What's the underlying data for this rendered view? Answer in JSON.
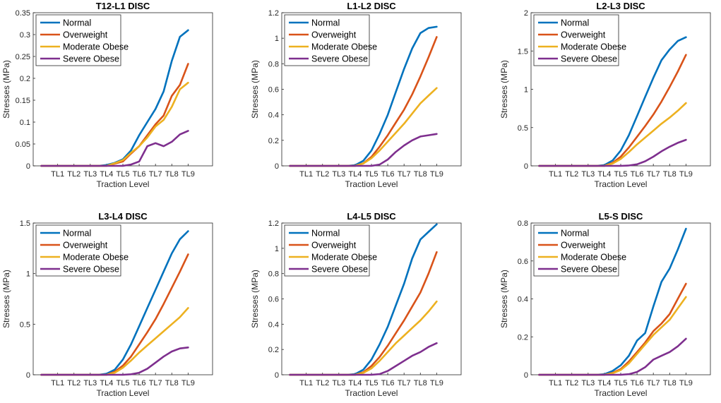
{
  "figure": {
    "legend": {
      "entries": [
        "Normal",
        "Overweight",
        "Moderate Obese",
        "Severe Obese"
      ],
      "placement": "top-left"
    },
    "series_colors": {
      "Normal": "#0072BD",
      "Overweight": "#D95319",
      "Moderate Obese": "#EDB120",
      "Severe Obese": "#7E2F8E"
    }
  },
  "chart_data": [
    {
      "type": "line",
      "title": "T12-L1 DISC",
      "xlabel": "Traction Level",
      "ylabel": "Stresses (MPa)",
      "categories": [
        "TL1",
        "TL2",
        "TL3",
        "TL4",
        "TL5",
        "TL6",
        "TL7",
        "TL8",
        "TL9"
      ],
      "x": [
        0,
        0.5,
        1,
        1.5,
        2,
        2.5,
        3,
        3.5,
        4,
        4.5,
        5,
        5.5,
        6,
        6.5,
        7,
        7.5,
        8,
        8.5,
        9
      ],
      "ylim": [
        0,
        0.35
      ],
      "yticks": [
        0,
        0.05,
        0.1,
        0.15,
        0.2,
        0.25,
        0.3,
        0.35
      ],
      "ytick_labels": [
        "0",
        "0.05",
        "0.1",
        "0.15",
        "0.2",
        "0.25",
        "0.3",
        "0.35"
      ],
      "series": [
        {
          "name": "Normal",
          "values": [
            0,
            0,
            0,
            0,
            0,
            0,
            0,
            0,
            0.002,
            0.007,
            0.015,
            0.035,
            0.07,
            0.1,
            0.13,
            0.17,
            0.24,
            0.295,
            0.31
          ]
        },
        {
          "name": "Overweight",
          "values": [
            0,
            0,
            0,
            0,
            0,
            0,
            0,
            0,
            0,
            0.005,
            0.01,
            0.028,
            0.045,
            0.07,
            0.095,
            0.115,
            0.16,
            0.185,
            0.233
          ]
        },
        {
          "name": "Moderate Obese",
          "values": [
            0,
            0,
            0,
            0,
            0,
            0,
            0,
            0,
            0,
            0.006,
            0.013,
            0.03,
            0.045,
            0.065,
            0.09,
            0.105,
            0.135,
            0.175,
            0.19
          ]
        },
        {
          "name": "Severe Obese",
          "values": [
            0,
            0,
            0,
            0,
            0,
            0,
            0,
            0,
            0,
            0,
            0,
            0.003,
            0.01,
            0.045,
            0.052,
            0.045,
            0.055,
            0.072,
            0.08
          ]
        }
      ]
    },
    {
      "type": "line",
      "title": "L1-L2 DISC",
      "xlabel": "Traction Level",
      "ylabel": "Stresses (MPa)",
      "categories": [
        "TL1",
        "TL2",
        "TL3",
        "TL4",
        "TL5",
        "TL6",
        "TL7",
        "TL8",
        "TL9"
      ],
      "x": [
        0,
        0.5,
        1,
        1.5,
        2,
        2.5,
        3,
        3.5,
        4,
        4.5,
        5,
        5.5,
        6,
        6.5,
        7,
        7.5,
        8,
        8.5,
        9
      ],
      "ylim": [
        0,
        1.2
      ],
      "yticks": [
        0,
        0.2,
        0.4,
        0.6,
        0.8,
        1,
        1.2
      ],
      "ytick_labels": [
        "0",
        "0.2",
        "0.4",
        "0.6",
        "0.8",
        "1",
        "1.2"
      ],
      "series": [
        {
          "name": "Normal",
          "values": [
            0,
            0,
            0,
            0,
            0,
            0,
            0,
            0,
            0.005,
            0.04,
            0.12,
            0.25,
            0.4,
            0.58,
            0.76,
            0.92,
            1.04,
            1.08,
            1.09
          ]
        },
        {
          "name": "Overweight",
          "values": [
            0,
            0,
            0,
            0,
            0,
            0,
            0,
            0,
            0,
            0.02,
            0.07,
            0.15,
            0.24,
            0.34,
            0.44,
            0.56,
            0.7,
            0.85,
            1.01
          ]
        },
        {
          "name": "Moderate Obese",
          "values": [
            0,
            0,
            0,
            0,
            0,
            0,
            0,
            0,
            0,
            0.018,
            0.06,
            0.12,
            0.19,
            0.26,
            0.33,
            0.41,
            0.49,
            0.55,
            0.61
          ]
        },
        {
          "name": "Severe Obese",
          "values": [
            0,
            0,
            0,
            0,
            0,
            0,
            0,
            0,
            0,
            0,
            0,
            0.01,
            0.05,
            0.11,
            0.16,
            0.2,
            0.23,
            0.24,
            0.25
          ]
        }
      ]
    },
    {
      "type": "line",
      "title": "L2-L3 DISC",
      "xlabel": "Traction Level",
      "ylabel": "Stresses (MPa)",
      "categories": [
        "TL1",
        "TL2",
        "TL3",
        "TL4",
        "TL5",
        "TL6",
        "TL7",
        "TL8",
        "TL9"
      ],
      "x": [
        0,
        0.5,
        1,
        1.5,
        2,
        2.5,
        3,
        3.5,
        4,
        4.5,
        5,
        5.5,
        6,
        6.5,
        7,
        7.5,
        8,
        8.5,
        9
      ],
      "ylim": [
        0,
        2
      ],
      "yticks": [
        0,
        0.5,
        1,
        1.5,
        2
      ],
      "ytick_labels": [
        "0",
        "0.5",
        "1",
        "1.5",
        "2"
      ],
      "series": [
        {
          "name": "Normal",
          "values": [
            0,
            0,
            0,
            0,
            0,
            0,
            0,
            0,
            0.01,
            0.07,
            0.2,
            0.4,
            0.65,
            0.9,
            1.15,
            1.38,
            1.52,
            1.63,
            1.68
          ]
        },
        {
          "name": "Overweight",
          "values": [
            0,
            0,
            0,
            0,
            0,
            0,
            0,
            0,
            0,
            0.04,
            0.12,
            0.24,
            0.38,
            0.52,
            0.67,
            0.84,
            1.03,
            1.23,
            1.45
          ]
        },
        {
          "name": "Moderate Obese",
          "values": [
            0,
            0,
            0,
            0,
            0,
            0,
            0,
            0,
            0,
            0.03,
            0.09,
            0.18,
            0.28,
            0.37,
            0.46,
            0.55,
            0.63,
            0.72,
            0.82
          ]
        },
        {
          "name": "Severe Obese",
          "values": [
            0,
            0,
            0,
            0,
            0,
            0,
            0,
            0,
            0,
            0,
            0,
            0.005,
            0.02,
            0.06,
            0.12,
            0.19,
            0.25,
            0.3,
            0.34
          ]
        }
      ]
    },
    {
      "type": "line",
      "title": "L3-L4 DISC",
      "xlabel": "Traction Level",
      "ylabel": "Stresses (MPa)",
      "categories": [
        "TL1",
        "TL2",
        "TL3",
        "TL4",
        "TL5",
        "TL6",
        "TL7",
        "TL8",
        "TL9"
      ],
      "x": [
        0,
        0.5,
        1,
        1.5,
        2,
        2.5,
        3,
        3.5,
        4,
        4.5,
        5,
        5.5,
        6,
        6.5,
        7,
        7.5,
        8,
        8.5,
        9
      ],
      "ylim": [
        0,
        1.5
      ],
      "yticks": [
        0,
        0.5,
        1,
        1.5
      ],
      "ytick_labels": [
        "0",
        "0.5",
        "1",
        "1.5"
      ],
      "series": [
        {
          "name": "Normal",
          "values": [
            0,
            0,
            0,
            0,
            0,
            0,
            0,
            0,
            0.01,
            0.05,
            0.15,
            0.3,
            0.48,
            0.66,
            0.84,
            1.02,
            1.2,
            1.34,
            1.42
          ]
        },
        {
          "name": "Overweight",
          "values": [
            0,
            0,
            0,
            0,
            0,
            0,
            0,
            0,
            0,
            0.03,
            0.09,
            0.18,
            0.3,
            0.42,
            0.55,
            0.7,
            0.86,
            1.02,
            1.19
          ]
        },
        {
          "name": "Moderate Obese",
          "values": [
            0,
            0,
            0,
            0,
            0,
            0,
            0,
            0,
            0,
            0.02,
            0.07,
            0.14,
            0.22,
            0.29,
            0.36,
            0.43,
            0.5,
            0.57,
            0.66
          ]
        },
        {
          "name": "Severe Obese",
          "values": [
            0,
            0,
            0,
            0,
            0,
            0,
            0,
            0,
            0,
            0,
            0,
            0.005,
            0.02,
            0.06,
            0.12,
            0.18,
            0.23,
            0.26,
            0.27
          ]
        }
      ]
    },
    {
      "type": "line",
      "title": "L4-L5 DISC",
      "xlabel": "Traction Level",
      "ylabel": "Stresses (MPa)",
      "categories": [
        "TL1",
        "TL2",
        "TL3",
        "TL4",
        "TL5",
        "TL6",
        "TL7",
        "TL8",
        "TL9"
      ],
      "x": [
        0,
        0.5,
        1,
        1.5,
        2,
        2.5,
        3,
        3.5,
        4,
        4.5,
        5,
        5.5,
        6,
        6.5,
        7,
        7.5,
        8,
        8.5,
        9
      ],
      "ylim": [
        0,
        1.2
      ],
      "yticks": [
        0,
        0.2,
        0.4,
        0.6,
        0.8,
        1,
        1.2
      ],
      "ytick_labels": [
        "0",
        "0.2",
        "0.4",
        "0.6",
        "0.8",
        "1",
        "1.2"
      ],
      "series": [
        {
          "name": "Normal",
          "values": [
            0,
            0,
            0,
            0,
            0,
            0,
            0,
            0,
            0.005,
            0.04,
            0.12,
            0.24,
            0.38,
            0.55,
            0.72,
            0.92,
            1.07,
            1.13,
            1.19
          ]
        },
        {
          "name": "Overweight",
          "values": [
            0,
            0,
            0,
            0,
            0,
            0,
            0,
            0,
            0,
            0.02,
            0.07,
            0.14,
            0.23,
            0.33,
            0.43,
            0.54,
            0.65,
            0.8,
            0.97
          ]
        },
        {
          "name": "Moderate Obese",
          "values": [
            0,
            0,
            0,
            0,
            0,
            0,
            0,
            0,
            0,
            0.015,
            0.05,
            0.11,
            0.18,
            0.25,
            0.31,
            0.37,
            0.43,
            0.5,
            0.58
          ]
        },
        {
          "name": "Severe Obese",
          "values": [
            0,
            0,
            0,
            0,
            0,
            0,
            0,
            0,
            0,
            0,
            0,
            0.005,
            0.03,
            0.07,
            0.11,
            0.15,
            0.18,
            0.22,
            0.25
          ]
        }
      ]
    },
    {
      "type": "line",
      "title": "L5-S DISC",
      "xlabel": "Traction Level",
      "ylabel": "Stresses (MPa)",
      "categories": [
        "TL1",
        "TL2",
        "TL3",
        "TL4",
        "TL5",
        "TL6",
        "TL7",
        "TL8",
        "TL9"
      ],
      "x": [
        0,
        0.5,
        1,
        1.5,
        2,
        2.5,
        3,
        3.5,
        4,
        4.5,
        5,
        5.5,
        6,
        6.5,
        7,
        7.5,
        8,
        8.5,
        9
      ],
      "ylim": [
        0,
        0.8
      ],
      "yticks": [
        0,
        0.2,
        0.4,
        0.6,
        0.8
      ],
      "ytick_labels": [
        "0",
        "0.2",
        "0.4",
        "0.6",
        "0.8"
      ],
      "series": [
        {
          "name": "Normal",
          "values": [
            0,
            0,
            0,
            0,
            0,
            0,
            0,
            0,
            0.003,
            0.02,
            0.05,
            0.1,
            0.18,
            0.22,
            0.36,
            0.49,
            0.56,
            0.66,
            0.77
          ]
        },
        {
          "name": "Overweight",
          "values": [
            0,
            0,
            0,
            0,
            0,
            0,
            0,
            0,
            0,
            0.01,
            0.03,
            0.07,
            0.12,
            0.17,
            0.23,
            0.27,
            0.32,
            0.4,
            0.48
          ]
        },
        {
          "name": "Moderate Obese",
          "values": [
            0,
            0,
            0,
            0,
            0,
            0,
            0,
            0,
            0,
            0.008,
            0.025,
            0.06,
            0.11,
            0.16,
            0.21,
            0.25,
            0.29,
            0.35,
            0.41
          ]
        },
        {
          "name": "Severe Obese",
          "values": [
            0,
            0,
            0,
            0,
            0,
            0,
            0,
            0,
            0,
            0,
            0,
            0.003,
            0.015,
            0.04,
            0.08,
            0.1,
            0.12,
            0.15,
            0.19
          ]
        }
      ]
    }
  ]
}
